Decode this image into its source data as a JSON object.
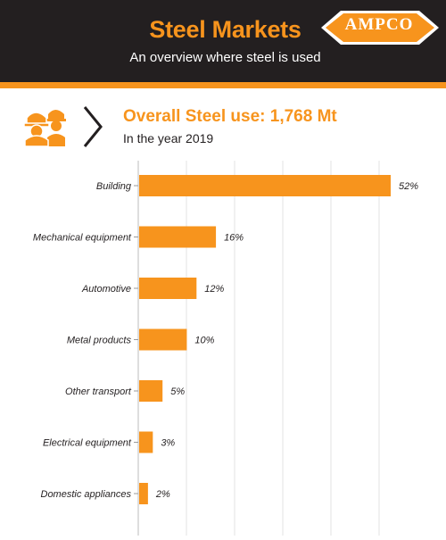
{
  "header": {
    "title": "Steel Markets",
    "subtitle": "An overview where steel is used",
    "logo_text": "AMPCO",
    "reg_mark": "®"
  },
  "summary": {
    "title": "Overall Steel use: 1,768 Mt",
    "subtitle": "In the year 2019"
  },
  "icons": {
    "worker": "worker-helmet-icon",
    "chevron": "chevron-right-icon"
  },
  "colors": {
    "accent": "#f7941d",
    "dark": "#231f20",
    "grid": "#e3e3e3"
  },
  "chart_data": {
    "type": "bar",
    "orientation": "horizontal",
    "categories": [
      "Building",
      "Mechanical equipment",
      "Automotive",
      "Metal products",
      "Other transport",
      "Electrical equipment",
      "Domestic appliances"
    ],
    "values": [
      52,
      16,
      12,
      10,
      5,
      3,
      2
    ],
    "value_labels": [
      "52%",
      "16%",
      "12%",
      "10%",
      "5%",
      "3%",
      "2%"
    ],
    "xlim": [
      0,
      52
    ],
    "grid": true,
    "legend": false
  }
}
